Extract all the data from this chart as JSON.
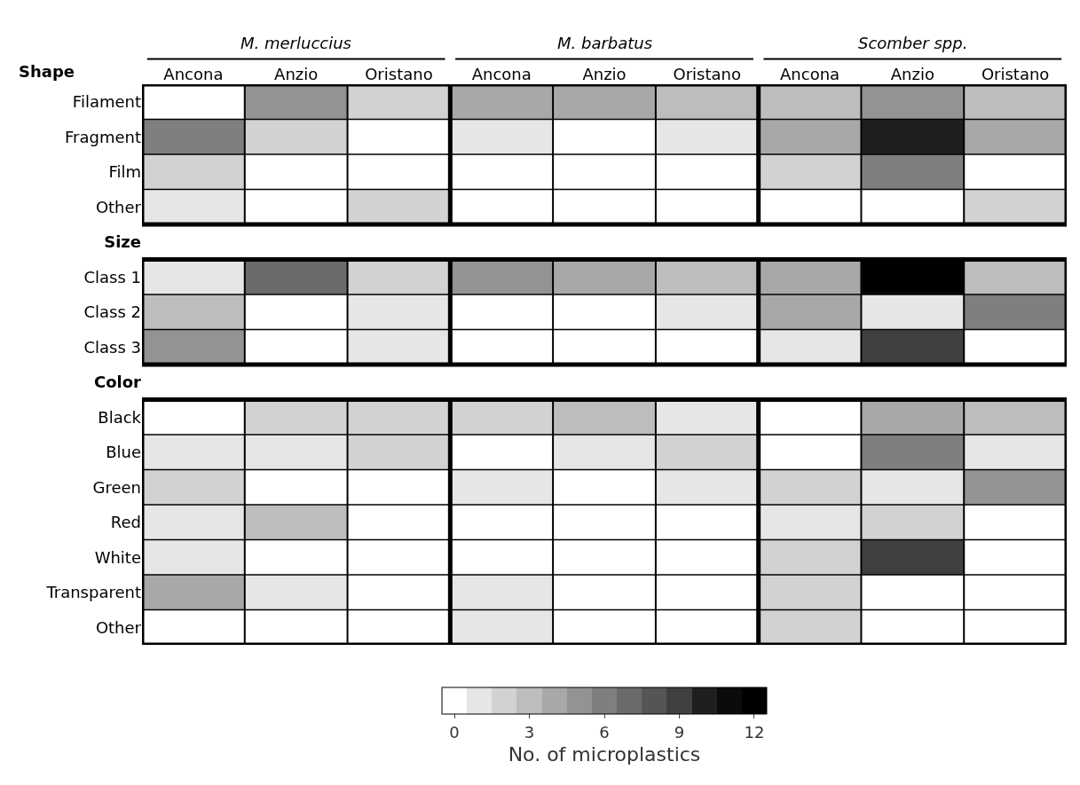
{
  "chart_data": {
    "type": "heatmap",
    "ylabel": "Shape",
    "categories": [
      "Ancona",
      "Anzio",
      "Oristano",
      "Ancona",
      "Anzio",
      "Oristano",
      "Ancona",
      "Anzio",
      "Oristano"
    ],
    "y_categories": [
      "Filament",
      "Fragment",
      "Film",
      "Other",
      "Size",
      "Class 1",
      "Class 2",
      "Class 3",
      "Color",
      "Black",
      "Blue",
      "Green",
      "Red",
      "White",
      "Transparent",
      "Other"
    ],
    "cells": [
      [
        0,
        5,
        2,
        4,
        4,
        3,
        3,
        5,
        3
      ],
      [
        6,
        2,
        0,
        1,
        0,
        1,
        4,
        10,
        4
      ],
      [
        2,
        0,
        0,
        0,
        0,
        0,
        2,
        6,
        0
      ],
      [
        1,
        0,
        2,
        0,
        0,
        0,
        0,
        0,
        2
      ],
      [
        null,
        null,
        null,
        null,
        null,
        null,
        null,
        null,
        null
      ],
      [
        1,
        7,
        2,
        5,
        4,
        3,
        4,
        12,
        3
      ],
      [
        3,
        0,
        1,
        0,
        0,
        1,
        4,
        1,
        6
      ],
      [
        5,
        0,
        1,
        0,
        0,
        0,
        1,
        9,
        0
      ],
      [
        null,
        null,
        null,
        null,
        null,
        null,
        null,
        null,
        null
      ],
      [
        0,
        2,
        2,
        2,
        3,
        1,
        0,
        4,
        3
      ],
      [
        1,
        1,
        2,
        0,
        1,
        2,
        0,
        6,
        1
      ],
      [
        2,
        0,
        0,
        1,
        0,
        1,
        2,
        1,
        5
      ],
      [
        1,
        3,
        0,
        0,
        0,
        0,
        1,
        2,
        0
      ],
      [
        1,
        0,
        0,
        0,
        0,
        0,
        2,
        9,
        0
      ],
      [
        4,
        1,
        0,
        1,
        0,
        0,
        2,
        0,
        0
      ],
      [
        0,
        0,
        0,
        1,
        0,
        0,
        2,
        0,
        0
      ]
    ],
    "annotations": [
      "M. merluccius",
      "M. barbatus",
      "Scomber spp."
    ],
    "clim": [
      -0.5,
      12.5
    ],
    "cticks": [
      0,
      3,
      6,
      9,
      12
    ],
    "clabel": "No. of microplastics"
  }
}
